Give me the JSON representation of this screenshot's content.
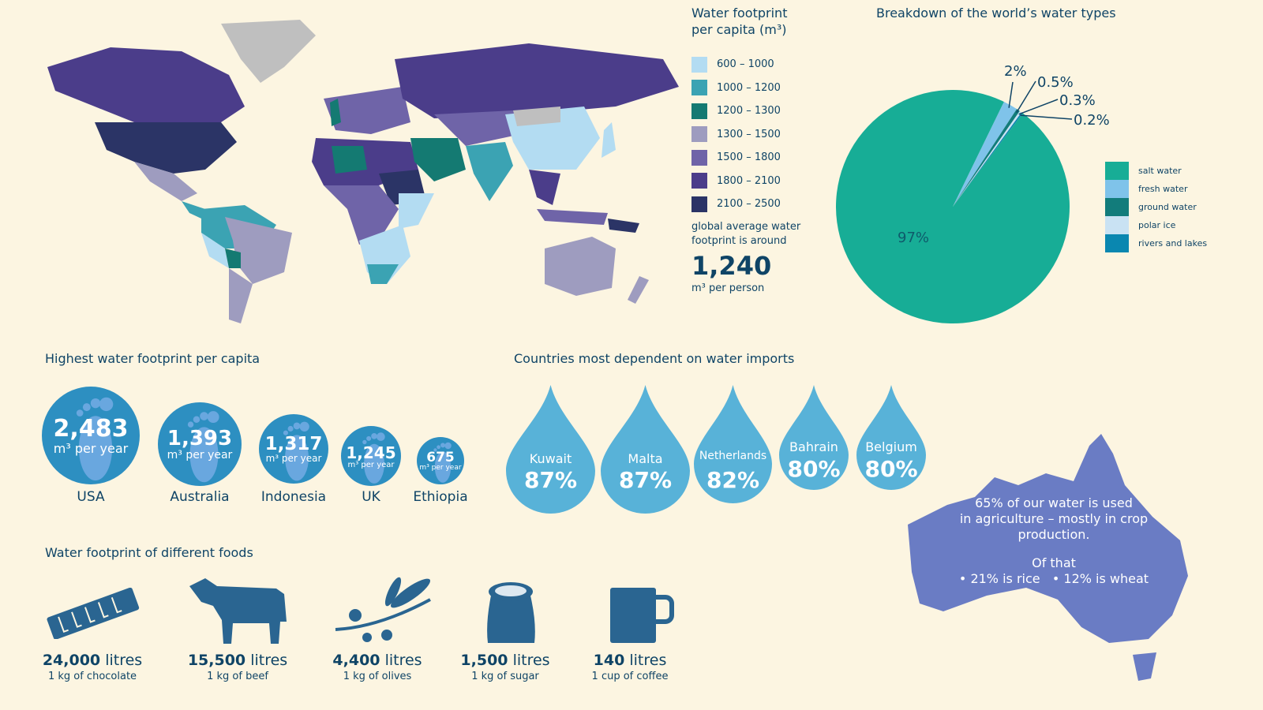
{
  "map": {
    "title_line1": "Water footprint",
    "title_line2": "per capita (m³)",
    "legend": [
      {
        "label": "600 – 1000",
        "color": "#b3dcf2"
      },
      {
        "label": "1000 – 1200",
        "color": "#3ba3b3"
      },
      {
        "label": "1200 – 1300",
        "color": "#147a72"
      },
      {
        "label": "1300 – 1500",
        "color": "#9e9cbf"
      },
      {
        "label": "1500 – 1800",
        "color": "#6f64a8"
      },
      {
        "label": "1800 – 2100",
        "color": "#4b3d8a"
      },
      {
        "label": "2100 – 2500",
        "color": "#2b3466"
      }
    ],
    "avg_text_line1": "global average water",
    "avg_text_line2": "footprint is around",
    "avg_value": "1,240",
    "avg_unit": "m³ per person"
  },
  "chart_data": {
    "type": "pie",
    "title": "Breakdown of the world’s water types",
    "legend_placement": "right",
    "slices": [
      {
        "name": "salt water",
        "value": 97,
        "label": "97%",
        "color": "#17ad96"
      },
      {
        "name": "fresh water",
        "value": 2,
        "label": "2%",
        "color": "#7fc3ea"
      },
      {
        "name": "ground water",
        "value": 0.5,
        "label": "0.5%",
        "color": "#127c7b"
      },
      {
        "name": "polar ice",
        "value": 0.3,
        "label": "0.3%",
        "color": "#c9e2f3"
      },
      {
        "name": "rivers and lakes",
        "value": 0.2,
        "label": "0.2%",
        "color": "#0a87b0"
      }
    ]
  },
  "highest": {
    "title": "Highest water footprint per capita",
    "unit": "m³ per year",
    "items": [
      {
        "country": "USA",
        "value": "2,483"
      },
      {
        "country": "Australia",
        "value": "1,393"
      },
      {
        "country": "Indonesia",
        "value": "1,317"
      },
      {
        "country": "UK",
        "value": "1,245"
      },
      {
        "country": "Ethiopia",
        "value": "675"
      }
    ]
  },
  "imports": {
    "title": "Countries most dependent on water imports",
    "items": [
      {
        "country": "Kuwait",
        "value": "87%"
      },
      {
        "country": "Malta",
        "value": "87%"
      },
      {
        "country": "Netherlands",
        "value": "82%"
      },
      {
        "country": "Bahrain",
        "value": "80%"
      },
      {
        "country": "Belgium",
        "value": "80%"
      }
    ]
  },
  "foods": {
    "title": "Water footprint of different foods",
    "unit": "litres",
    "items": [
      {
        "amount": "24,000",
        "desc": "1 kg of chocolate",
        "icon": "chocolate-icon"
      },
      {
        "amount": "15,500",
        "desc": "1 kg of beef",
        "icon": "cow-icon"
      },
      {
        "amount": "4,400",
        "desc": "1 kg of olives",
        "icon": "olive-branch-icon"
      },
      {
        "amount": "1,500",
        "desc": "1 kg of sugar",
        "icon": "sugar-sack-icon"
      },
      {
        "amount": "140",
        "desc": "1 cup of coffee",
        "icon": "mug-icon"
      }
    ]
  },
  "australia": {
    "line1": "65% of our water is used",
    "line2": "in agriculture – mostly in crop",
    "line3": "production.",
    "line4": "Of that",
    "line5": "• 21% is rice   • 12% is wheat"
  }
}
